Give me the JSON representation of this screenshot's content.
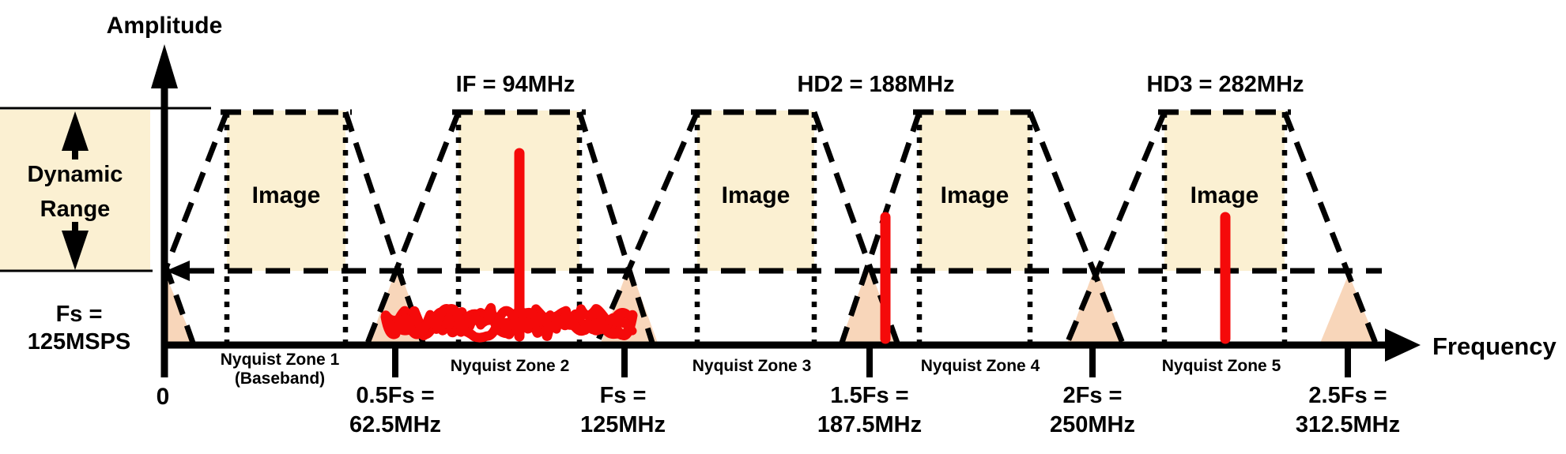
{
  "diagram": {
    "y_axis_label": "Amplitude",
    "x_axis_label": "Frequency",
    "origin_label": "0",
    "dynamic_range": {
      "line1": "Dynamic",
      "line2": "Range"
    },
    "sample_rate": {
      "line1": "Fs =",
      "line2": "125MSPS"
    },
    "signals": {
      "if_label": "IF = 94MHz",
      "hd2_label": "HD2 = 188MHz",
      "hd3_label": "HD3 = 282MHz"
    },
    "image_label": "Image",
    "zones": [
      {
        "label": "Nyquist Zone 1",
        "sublabel": "(Baseband)"
      },
      {
        "label": "Nyquist Zone 2"
      },
      {
        "label": "Nyquist Zone 3"
      },
      {
        "label": "Nyquist Zone 4"
      },
      {
        "label": "Nyquist Zone 5"
      }
    ],
    "tick_labels": [
      {
        "line1": "0.5Fs =",
        "line2": "62.5MHz"
      },
      {
        "line1": "Fs =",
        "line2": "125MHz"
      },
      {
        "line1": "1.5Fs =",
        "line2": "187.5MHz"
      },
      {
        "line1": "2Fs =",
        "line2": "250MHz"
      },
      {
        "line1": "2.5Fs =",
        "line2": "312.5MHz"
      }
    ],
    "colors": {
      "band_fill": "#FBF0D2",
      "alias_fill": "#F8D6BA",
      "signal_red": "#F50A0A",
      "ink": "#000000"
    },
    "spectrum": {
      "sample_rate_msps": 125,
      "if_mhz": 94,
      "hd2_mhz": 188,
      "hd3_mhz": 282,
      "zone_boundaries_mhz": [
        0,
        62.5,
        125,
        187.5,
        250,
        312.5
      ]
    }
  }
}
